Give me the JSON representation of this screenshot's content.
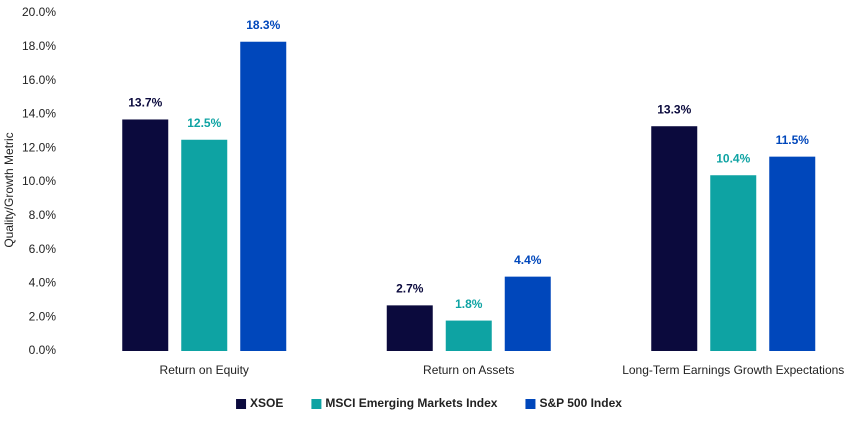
{
  "chart_data": {
    "type": "bar",
    "y_label": "Quality/Growth Metric",
    "categories": [
      "Return on Equity",
      "Return on Assets",
      "Long-Term Earnings Growth Expectations"
    ],
    "series": [
      {
        "name": "XSOE",
        "color": "#0b0a3d",
        "values": [
          13.7,
          2.7,
          13.3
        ],
        "value_labels": [
          "13.7%",
          "2.7%",
          "13.3%"
        ]
      },
      {
        "name": "MSCI Emerging Markets Index",
        "color": "#0ea3a3",
        "values": [
          12.5,
          1.8,
          10.4
        ],
        "value_labels": [
          "12.5%",
          "1.8%",
          "10.4%"
        ]
      },
      {
        "name": "S&P 500 Index",
        "color": "#0047bb",
        "values": [
          18.3,
          4.4,
          11.5
        ],
        "value_labels": [
          "18.3%",
          "4.4%",
          "11.5%"
        ]
      }
    ],
    "ylim": [
      0,
      20
    ],
    "yticks": [
      {
        "value": 0,
        "label": "0.0%"
      },
      {
        "value": 2,
        "label": "2.0%"
      },
      {
        "value": 4,
        "label": "4.0%"
      },
      {
        "value": 6,
        "label": "6.0%"
      },
      {
        "value": 8,
        "label": "8.0%"
      },
      {
        "value": 10,
        "label": "10.0%"
      },
      {
        "value": 12,
        "label": "12.0%"
      },
      {
        "value": 14,
        "label": "14.0%"
      },
      {
        "value": 16,
        "label": "16.0%"
      },
      {
        "value": 18,
        "label": "18.0%"
      },
      {
        "value": 20,
        "label": "20.0%"
      }
    ],
    "legend": "bottom"
  }
}
